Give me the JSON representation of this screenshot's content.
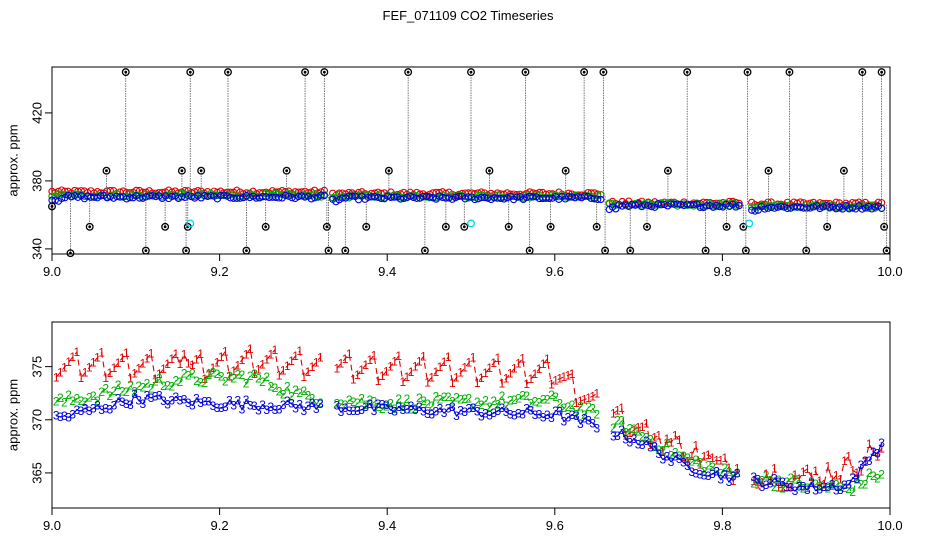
{
  "title": "FEF_071109  CO2 Timeseries",
  "chart_data": [
    {
      "type": "scatter",
      "panel": "top",
      "title": "FEF_071109  CO2 Timeseries",
      "xlabel": "",
      "ylabel": "approx. ppm",
      "xlim": [
        9.0,
        10.0
      ],
      "ylim": [
        337,
        447
      ],
      "xticks": [
        9.0,
        9.2,
        9.4,
        9.6,
        9.8,
        10.0
      ],
      "xtick_labels": [
        "9.0",
        "9.2",
        "9.4",
        "9.6",
        "9.8",
        "10.0"
      ],
      "yticks": [
        340,
        380,
        420
      ],
      "ytick_labels": [
        "340",
        "380",
        "420"
      ],
      "colors": {
        "series1": "#e00000",
        "series2": "#00b000",
        "series3": "#0000dd",
        "spikes": "#000000",
        "flags": "#00d8e8"
      },
      "series": [
        {
          "name": "1",
          "segments": [
            {
              "x0": 9.0,
              "x1": 9.325,
              "y": 373.5
            },
            {
              "x0": 9.335,
              "x1": 9.655,
              "y": 372.5
            },
            {
              "x0": 9.665,
              "x1": 9.82,
              "y": 367.0
            },
            {
              "x0": 9.835,
              "x1": 9.99,
              "y": 366.5
            }
          ]
        },
        {
          "name": "2",
          "segments": [
            {
              "x0": 9.0,
              "x1": 9.325,
              "y": 371.5
            },
            {
              "x0": 9.335,
              "x1": 9.655,
              "y": 371.0
            },
            {
              "x0": 9.665,
              "x1": 9.82,
              "y": 366.0
            },
            {
              "x0": 9.835,
              "x1": 9.99,
              "y": 365.0
            }
          ]
        },
        {
          "name": "3",
          "segments": [
            {
              "x0": 9.0,
              "x1": 9.325,
              "y": 370.5
            },
            {
              "x0": 9.335,
              "x1": 9.655,
              "y": 370.0
            },
            {
              "x0": 9.665,
              "x1": 9.82,
              "y": 365.5
            },
            {
              "x0": 9.835,
              "x1": 9.99,
              "y": 364.5
            }
          ]
        },
        {
          "name": "spikes",
          "points": [
            [
              9.0,
              370,
              365
            ],
            [
              9.022,
              370,
              337.5
            ],
            [
              9.045,
              370,
              353
            ],
            [
              9.065,
              372,
              386
            ],
            [
              9.088,
              372,
              444
            ],
            [
              9.112,
              372,
              339
            ],
            [
              9.135,
              372,
              353
            ],
            [
              9.155,
              372,
              386
            ],
            [
              9.16,
              372,
              339
            ],
            [
              9.162,
              372,
              353
            ],
            [
              9.165,
              372,
              444
            ],
            [
              9.178,
              372,
              386
            ],
            [
              9.21,
              372,
              444
            ],
            [
              9.232,
              372,
              339
            ],
            [
              9.255,
              372,
              353
            ],
            [
              9.28,
              372,
              386
            ],
            [
              9.302,
              372,
              444
            ],
            [
              9.325,
              372,
              444
            ],
            [
              9.328,
              372,
              353
            ],
            [
              9.33,
              372,
              339
            ],
            [
              9.35,
              371,
              339
            ],
            [
              9.375,
              371,
              353
            ],
            [
              9.402,
              371,
              386
            ],
            [
              9.425,
              371,
              444
            ],
            [
              9.445,
              371,
              339
            ],
            [
              9.47,
              371,
              353
            ],
            [
              9.492,
              371,
              353
            ],
            [
              9.5,
              371,
              444
            ],
            [
              9.522,
              371,
              386
            ],
            [
              9.545,
              371,
              353
            ],
            [
              9.565,
              371,
              444
            ],
            [
              9.57,
              371,
              339
            ],
            [
              9.595,
              371,
              353
            ],
            [
              9.613,
              371,
              386
            ],
            [
              9.635,
              371,
              444
            ],
            [
              9.65,
              371,
              353
            ],
            [
              9.658,
              371,
              444
            ],
            [
              9.66,
              371,
              339
            ],
            [
              9.69,
              366,
              339
            ],
            [
              9.71,
              366,
              353
            ],
            [
              9.735,
              366,
              386
            ],
            [
              9.758,
              366,
              444
            ],
            [
              9.78,
              366,
              339
            ],
            [
              9.805,
              366,
              353
            ],
            [
              9.825,
              366,
              353
            ],
            [
              9.828,
              366,
              339
            ],
            [
              9.83,
              366,
              444
            ],
            [
              9.855,
              366,
              386
            ],
            [
              9.88,
              366,
              444
            ],
            [
              9.9,
              366,
              339
            ],
            [
              9.925,
              366,
              353
            ],
            [
              9.945,
              366,
              386
            ],
            [
              9.967,
              366,
              444
            ],
            [
              9.99,
              366,
              444
            ],
            [
              9.993,
              366,
              353
            ],
            [
              9.996,
              366,
              339
            ]
          ]
        },
        {
          "name": "flags",
          "points": [
            [
              9.165,
              355
            ],
            [
              9.5,
              355
            ],
            [
              9.832,
              355
            ]
          ]
        }
      ]
    },
    {
      "type": "scatter",
      "panel": "bottom",
      "xlabel": "",
      "ylabel": "approx. ppm",
      "xlim": [
        9.0,
        10.0
      ],
      "ylim": [
        361.7,
        379.2
      ],
      "xticks": [
        9.0,
        9.2,
        9.4,
        9.6,
        9.8,
        10.0
      ],
      "xtick_labels": [
        "9.0",
        "9.2",
        "9.4",
        "9.6",
        "9.8",
        "10.0"
      ],
      "yticks": [
        365,
        370,
        375
      ],
      "ytick_labels": [
        "365",
        "370",
        "375"
      ],
      "series": [
        {
          "name": "1",
          "color": "#e00000",
          "glyph": "1",
          "knots": [
            [
              9.0,
              375.2
            ],
            [
              9.15,
              375.0
            ],
            [
              9.155,
              377.6
            ],
            [
              9.165,
              374.9
            ],
            [
              9.24,
              375.5
            ],
            [
              9.4,
              374.8
            ],
            [
              9.6,
              374.5
            ],
            [
              9.645,
              371.5
            ],
            [
              9.7,
              369.0
            ],
            [
              9.75,
              367.5
            ],
            [
              9.8,
              365.5
            ],
            [
              9.9,
              364.5
            ],
            [
              9.95,
              365.5
            ],
            [
              9.99,
              367.5
            ]
          ],
          "jitter": 1.2
        },
        {
          "name": "2",
          "color": "#00b000",
          "glyph": "2",
          "knots": [
            [
              9.0,
              371.5
            ],
            [
              9.15,
              373.8
            ],
            [
              9.24,
              374.0
            ],
            [
              9.3,
              372.2
            ],
            [
              9.4,
              371.5
            ],
            [
              9.6,
              371.8
            ],
            [
              9.645,
              370.5
            ],
            [
              9.7,
              368.8
            ],
            [
              9.75,
              366.5
            ],
            [
              9.8,
              365.0
            ],
            [
              9.9,
              363.8
            ],
            [
              9.95,
              363.5
            ],
            [
              9.99,
              365.0
            ]
          ],
          "jitter": 0.6
        },
        {
          "name": "3",
          "color": "#0000dd",
          "glyph": "3",
          "knots": [
            [
              9.0,
              370.0
            ],
            [
              9.1,
              372.0
            ],
            [
              9.2,
              371.5
            ],
            [
              9.4,
              371.0
            ],
            [
              9.6,
              370.5
            ],
            [
              9.645,
              369.5
            ],
            [
              9.7,
              368.0
            ],
            [
              9.75,
              365.8
            ],
            [
              9.8,
              364.7
            ],
            [
              9.9,
              363.6
            ],
            [
              9.95,
              363.8
            ],
            [
              9.99,
              367.8
            ]
          ],
          "jitter": 0.5
        }
      ]
    }
  ]
}
